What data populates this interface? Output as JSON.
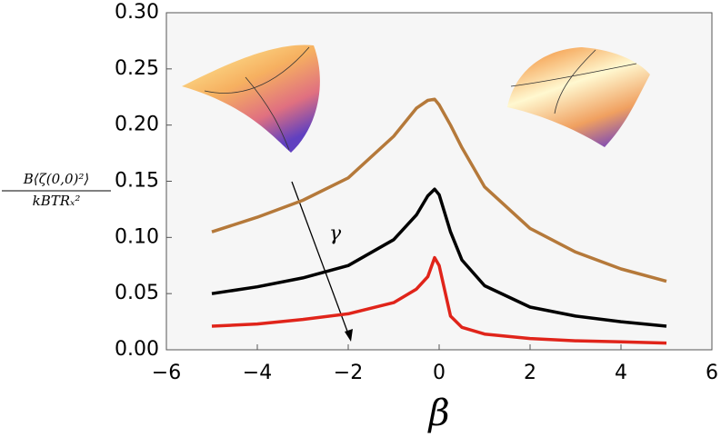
{
  "chart_data": {
    "type": "line",
    "ylabel": {
      "numerator": "B⟨ζ(0,0)²⟩",
      "denominator": "kBTRₓ²"
    },
    "xlabel": "β",
    "annotation": "γ",
    "x": [
      -5,
      -4,
      -3,
      -2,
      -1,
      -0.5,
      -0.25,
      -0.1,
      0,
      0.25,
      0.5,
      1,
      2,
      3,
      4,
      5
    ],
    "series": [
      {
        "color": "#b5793a",
        "values": [
          0.105,
          0.118,
          0.133,
          0.153,
          0.19,
          0.215,
          0.222,
          0.223,
          0.218,
          0.2,
          0.18,
          0.145,
          0.108,
          0.087,
          0.072,
          0.061
        ]
      },
      {
        "color": "#000000",
        "values": [
          0.05,
          0.056,
          0.064,
          0.075,
          0.098,
          0.12,
          0.137,
          0.143,
          0.138,
          0.105,
          0.08,
          0.057,
          0.038,
          0.03,
          0.025,
          0.021
        ]
      },
      {
        "color": "#e0241a",
        "values": [
          0.021,
          0.023,
          0.027,
          0.032,
          0.042,
          0.054,
          0.065,
          0.082,
          0.075,
          0.03,
          0.02,
          0.014,
          0.01,
          0.008,
          0.007,
          0.006
        ]
      }
    ],
    "xlim": [
      -6,
      6
    ],
    "xticks": [
      {
        "value": -6,
        "label": "−6"
      },
      {
        "value": -4,
        "label": "−4"
      },
      {
        "value": -2,
        "label": "−2"
      },
      0,
      2,
      4,
      6
    ],
    "ylim": [
      0,
      0.3
    ],
    "yticks": [
      {
        "value": 0,
        "label": "0.00"
      },
      {
        "value": 0.05,
        "label": "0.05"
      },
      {
        "value": 0.1,
        "label": "0.10"
      },
      {
        "value": 0.15,
        "label": "0.15"
      },
      {
        "value": 0.2,
        "label": "0.20"
      },
      {
        "value": 0.25,
        "label": "0.25"
      },
      {
        "value": 0.3,
        "label": "0.30"
      }
    ]
  }
}
